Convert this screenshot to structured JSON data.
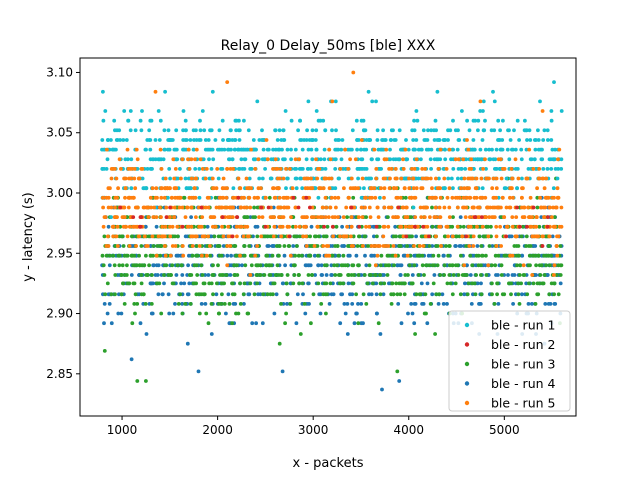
{
  "chart_data": {
    "type": "scatter",
    "title": "Relay_0 Delay_50ms [ble] XXX",
    "xlabel": "x - packets",
    "ylabel": "y - latency (s)",
    "xlim": [
      560,
      5750
    ],
    "ylim": [
      2.815,
      3.112
    ],
    "xticks": [
      1000,
      2000,
      3000,
      4000,
      5000
    ],
    "yticks": [
      2.85,
      2.9,
      2.95,
      3.0,
      3.05,
      3.1
    ],
    "ytick_labels": [
      "2.85",
      "2.90",
      "2.95",
      "3.00",
      "3.05",
      "3.10"
    ],
    "grid": false,
    "legend_position": "lower-right",
    "x_range_of_points": [
      790,
      5600
    ],
    "y_levels": [
      2.837,
      2.844,
      2.852,
      2.862,
      2.869,
      2.875,
      2.883,
      2.892,
      2.9,
      2.908,
      2.916,
      2.925,
      2.932,
      2.94,
      2.948,
      2.956,
      2.964,
      2.972,
      2.98,
      2.988,
      2.996,
      3.004,
      3.012,
      3.02,
      3.028,
      3.036,
      3.044,
      3.052,
      3.06,
      3.068,
      3.076,
      3.084,
      3.092,
      3.1
    ],
    "series": [
      {
        "name": "ble - run 1",
        "color": "#17becf",
        "center": 3.03,
        "spread": 0.03,
        "points": [
          [
            800,
            3.084
          ],
          [
            1450,
            3.084
          ],
          [
            1950,
            3.084
          ],
          [
            3580,
            3.084
          ],
          [
            5520,
            3.092
          ],
          [
            2950,
            3.076
          ],
          [
            4300,
            3.084
          ],
          [
            4900,
            3.076
          ],
          [
            5600,
            3.068
          ]
        ]
      },
      {
        "name": "ble - run 2",
        "color": "#d62728",
        "center": 2.98,
        "spread": 0.02,
        "points": [
          [
            1200,
            2.98
          ],
          [
            2500,
            2.972
          ],
          [
            3400,
            2.988
          ],
          [
            4600,
            2.964
          ]
        ]
      },
      {
        "name": "ble - run 3",
        "color": "#2ca02c",
        "center": 2.95,
        "spread": 0.04,
        "points": [
          [
            1160,
            2.844
          ],
          [
            1250,
            2.844
          ],
          [
            3880,
            2.852
          ],
          [
            2650,
            2.875
          ],
          [
            820,
            2.869
          ],
          [
            2870,
            2.883
          ]
        ]
      },
      {
        "name": "ble - run 4",
        "color": "#1f77b4",
        "center": 2.94,
        "spread": 0.04,
        "points": [
          [
            3720,
            2.837
          ],
          [
            1800,
            2.852
          ],
          [
            2680,
            2.852
          ],
          [
            3900,
            2.844
          ],
          [
            5420,
            2.875
          ],
          [
            1100,
            2.862
          ]
        ]
      },
      {
        "name": "ble - run 5",
        "color": "#ff7f0e",
        "center": 2.99,
        "spread": 0.035,
        "points": [
          [
            3420,
            3.1
          ],
          [
            2100,
            3.092
          ],
          [
            1350,
            3.084
          ],
          [
            3200,
            3.076
          ],
          [
            4750,
            3.076
          ],
          [
            5400,
            3.068
          ]
        ]
      }
    ]
  }
}
